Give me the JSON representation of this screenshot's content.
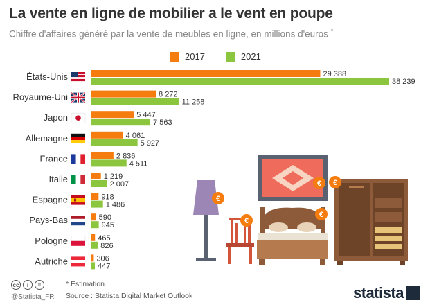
{
  "title": "La vente en ligne de mobilier a le vent en poupe",
  "subtitle": "Chiffre d'affaires généré par la vente de meubles en ligne, en millions d'euros",
  "subtitle_mark": "*",
  "legend": [
    {
      "label": "2017",
      "color": "#f57c0e"
    },
    {
      "label": "2021",
      "color": "#8cc63e"
    }
  ],
  "chart_data": {
    "type": "bar",
    "orientation": "horizontal",
    "categories": [
      "États-Unis",
      "Royaume-Uni",
      "Japon",
      "Allemagne",
      "France",
      "Italie",
      "Espagne",
      "Pays-Bas",
      "Pologne",
      "Autriche"
    ],
    "flags": [
      "flag-us-icon",
      "flag-uk-icon",
      "flag-jp-icon",
      "flag-de-icon",
      "flag-fr-icon",
      "flag-it-icon",
      "flag-es-icon",
      "flag-nl-icon",
      "flag-pl-icon",
      "flag-at-icon"
    ],
    "series": [
      {
        "name": "2017",
        "values": [
          29388,
          8272,
          5447,
          4061,
          2836,
          1219,
          918,
          590,
          465,
          306
        ],
        "labels": [
          "29 388",
          "8 272",
          "5 447",
          "4 061",
          "2 836",
          "1 219",
          "918",
          "590",
          "465",
          "306"
        ],
        "color": "#f57c0e"
      },
      {
        "name": "2021",
        "values": [
          38239,
          11258,
          7563,
          5927,
          4511,
          2007,
          1486,
          945,
          826,
          447
        ],
        "labels": [
          "38 239",
          "11 258",
          "7 563",
          "5 927",
          "4 511",
          "2 007",
          "1 486",
          "945",
          "826",
          "447"
        ],
        "color": "#8cc63e"
      }
    ],
    "xlim": [
      0,
      38239
    ],
    "grid": false,
    "legend_position": "top"
  },
  "footer": {
    "note": "* Estimation.",
    "source": "Source : Statista Digital Market Outlook",
    "handle": "@Statista_FR",
    "brand": "statista"
  }
}
